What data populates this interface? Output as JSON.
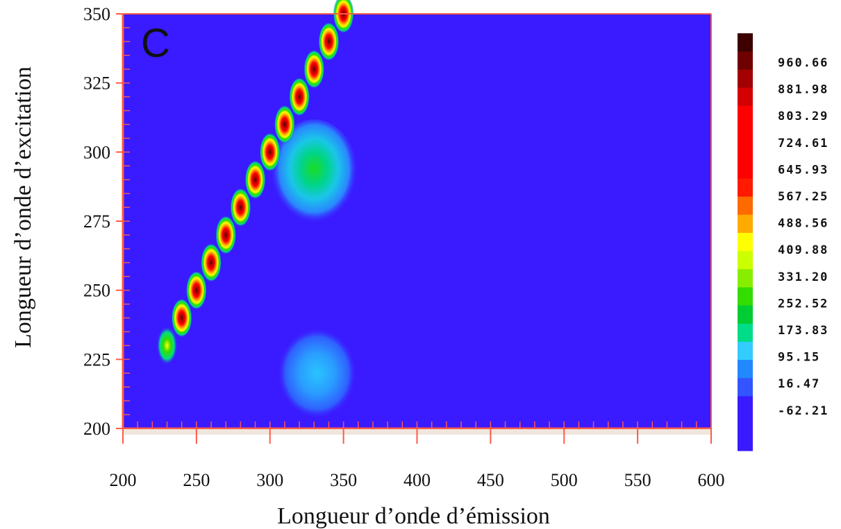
{
  "chart_data": {
    "type": "heatmap",
    "panel_label": "C",
    "xlabel": "Longueur d’onde d’émission",
    "ylabel": "Longueur d’onde d’excitation",
    "xlim": [
      200,
      600
    ],
    "ylim": [
      200,
      350
    ],
    "x_ticks": [
      200,
      250,
      300,
      350,
      400,
      450,
      500,
      550,
      600
    ],
    "x_tick_labels": [
      "200",
      "250",
      "300",
      "350",
      "400",
      "450",
      "500",
      "550",
      "600"
    ],
    "y_ticks": [
      200,
      225,
      250,
      275,
      300,
      325,
      350
    ],
    "y_tick_labels": [
      "200",
      "225",
      "250",
      "275",
      "300",
      "325",
      "350"
    ],
    "background_value": -62.21,
    "colorbar": {
      "labels": [
        "960.66",
        "881.98",
        "803.29",
        "724.61",
        "645.93",
        "567.25",
        "488.56",
        "409.88",
        "331.20",
        "252.52",
        "173.83",
        "95.15",
        "16.47",
        "-62.21"
      ],
      "colors": [
        "#3c0000",
        "#6e0000",
        "#a30000",
        "#d40000",
        "#ff0000",
        "#ff0000",
        "#ff0000",
        "#ff0000",
        "#ff1a00",
        "#ff6a00",
        "#ffaa00",
        "#ffff00",
        "#ccff00",
        "#88ee00",
        "#33dd00",
        "#00cc33",
        "#00dd88",
        "#33ccff",
        "#2288ff",
        "#3355ff",
        "#3a1aff",
        "#3a1aff",
        "#3a1aff"
      ]
    },
    "rayleigh_scatter_peaks": [
      {
        "x": 230,
        "y": 230,
        "value": 200
      },
      {
        "x": 240,
        "y": 240,
        "value": 700
      },
      {
        "x": 250,
        "y": 250,
        "value": 820
      },
      {
        "x": 260,
        "y": 260,
        "value": 880
      },
      {
        "x": 270,
        "y": 270,
        "value": 880
      },
      {
        "x": 280,
        "y": 280,
        "value": 680
      },
      {
        "x": 290,
        "y": 290,
        "value": 640
      },
      {
        "x": 300,
        "y": 300,
        "value": 700
      },
      {
        "x": 310,
        "y": 310,
        "value": 720
      },
      {
        "x": 320,
        "y": 320,
        "value": 820
      },
      {
        "x": 330,
        "y": 330,
        "value": 880
      },
      {
        "x": 340,
        "y": 340,
        "value": 900
      },
      {
        "x": 350,
        "y": 350,
        "value": 850
      }
    ],
    "fluorescence_regions": [
      {
        "x_center": 330,
        "y_center": 292,
        "x_range": [
          318,
          370
        ],
        "y_range": [
          276,
          312
        ],
        "peak_value": 260
      },
      {
        "x_center": 332,
        "y_center": 220,
        "x_range": [
          318,
          365
        ],
        "y_range": [
          207,
          237
        ],
        "peak_value": 95
      }
    ]
  }
}
